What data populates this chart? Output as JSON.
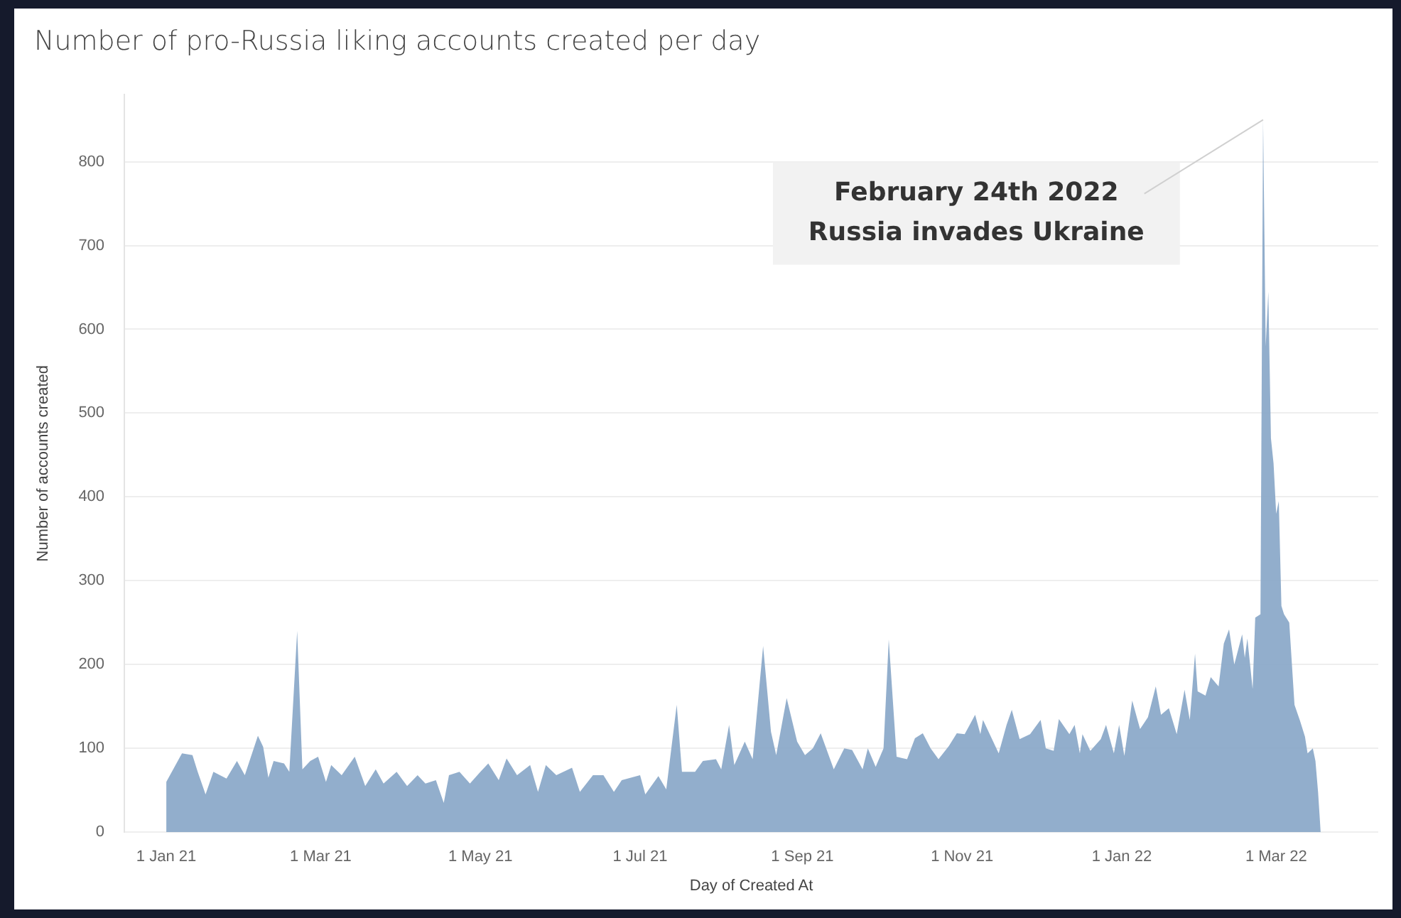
{
  "chart_data": {
    "type": "area",
    "title": "Number of pro-Russia liking accounts created per day",
    "xlabel": "Day of Created At",
    "ylabel": "Number of accounts created",
    "x": [
      "2021-01-01",
      "2021-01-07",
      "2021-01-11",
      "2021-01-13",
      "2021-01-16",
      "2021-01-19",
      "2021-01-24",
      "2021-01-28",
      "2021-01-31",
      "2021-02-05",
      "2021-02-07",
      "2021-02-09",
      "2021-02-11",
      "2021-02-15",
      "2021-02-17",
      "2021-02-20",
      "2021-02-22",
      "2021-02-25",
      "2021-02-28",
      "2021-03-03",
      "2021-03-05",
      "2021-03-09",
      "2021-03-14",
      "2021-03-18",
      "2021-03-22",
      "2021-03-25",
      "2021-03-30",
      "2021-04-03",
      "2021-04-07",
      "2021-04-10",
      "2021-04-14",
      "2021-04-17",
      "2021-04-19",
      "2021-04-23",
      "2021-04-27",
      "2021-05-01",
      "2021-05-04",
      "2021-05-08",
      "2021-05-11",
      "2021-05-15",
      "2021-05-20",
      "2021-05-23",
      "2021-05-26",
      "2021-05-30",
      "2021-06-05",
      "2021-06-08",
      "2021-06-13",
      "2021-06-17",
      "2021-06-21",
      "2021-06-24",
      "2021-07-01",
      "2021-07-03",
      "2021-07-08",
      "2021-07-11",
      "2021-07-15",
      "2021-07-17",
      "2021-07-22",
      "2021-07-25",
      "2021-07-30",
      "2021-08-01",
      "2021-08-04",
      "2021-08-06",
      "2021-08-10",
      "2021-08-13",
      "2021-08-17",
      "2021-08-20",
      "2021-08-22",
      "2021-08-26",
      "2021-08-30",
      "2021-09-02",
      "2021-09-05",
      "2021-09-08",
      "2021-09-13",
      "2021-09-17",
      "2021-09-20",
      "2021-09-24",
      "2021-09-26",
      "2021-09-29",
      "2021-10-02",
      "2021-10-04",
      "2021-10-07",
      "2021-10-11",
      "2021-10-14",
      "2021-10-17",
      "2021-10-20",
      "2021-10-23",
      "2021-10-27",
      "2021-10-30",
      "2021-11-02",
      "2021-11-06",
      "2021-11-08",
      "2021-11-09",
      "2021-11-15",
      "2021-11-18",
      "2021-11-20",
      "2021-11-23",
      "2021-11-27",
      "2021-12-01",
      "2021-12-03",
      "2021-12-06",
      "2021-12-08",
      "2021-12-12",
      "2021-12-14",
      "2021-12-16",
      "2021-12-17",
      "2021-12-20",
      "2021-12-24",
      "2021-12-26",
      "2021-12-29",
      "2021-12-31",
      "2022-01-02",
      "2022-01-05",
      "2022-01-08",
      "2022-01-11",
      "2022-01-14",
      "2022-01-16",
      "2022-01-19",
      "2022-01-22",
      "2022-01-25",
      "2022-01-27",
      "2022-01-29",
      "2022-01-30",
      "2022-02-02",
      "2022-02-04",
      "2022-02-07",
      "2022-02-09",
      "2022-02-11",
      "2022-02-13",
      "2022-02-16",
      "2022-02-17",
      "2022-02-18",
      "2022-02-20",
      "2022-02-21",
      "2022-02-23",
      "2022-02-24",
      "2022-02-25",
      "2022-02-26",
      "2022-02-27",
      "2022-02-28",
      "2022-03-01",
      "2022-03-02",
      "2022-03-03",
      "2022-03-04",
      "2022-03-06",
      "2022-03-08",
      "2022-03-10",
      "2022-03-12",
      "2022-03-13",
      "2022-03-15",
      "2022-03-16",
      "2022-03-17",
      "2022-03-18"
    ],
    "series": [
      {
        "color": "#8aa8c8",
        "values": [
          60,
          94,
          92,
          72,
          45,
          72,
          64,
          85,
          68,
          115,
          102,
          65,
          85,
          82,
          72,
          240,
          75,
          85,
          90,
          60,
          80,
          68,
          90,
          55,
          75,
          58,
          72,
          55,
          68,
          58,
          62,
          35,
          68,
          72,
          58,
          72,
          82,
          62,
          88,
          68,
          80,
          48,
          80,
          68,
          77,
          48,
          68,
          68,
          48,
          62,
          68,
          45,
          67,
          51,
          152,
          72,
          72,
          85,
          87,
          75,
          128,
          80,
          108,
          87,
          222,
          120,
          92,
          160,
          108,
          92,
          100,
          118,
          75,
          100,
          98,
          75,
          100,
          78,
          100,
          230,
          90,
          87,
          112,
          118,
          100,
          87,
          103,
          118,
          117,
          140,
          117,
          134,
          94,
          128,
          146,
          111,
          117,
          134,
          100,
          97,
          135,
          117,
          128,
          94,
          117,
          97,
          111,
          128,
          94,
          128,
          91,
          157,
          123,
          137,
          174,
          140,
          148,
          117,
          170,
          134,
          213,
          168,
          163,
          185,
          174,
          225,
          242,
          200,
          236,
          208,
          231,
          171,
          256,
          260,
          850,
          580,
          645,
          470,
          440,
          380,
          395,
          270,
          260,
          250,
          152,
          134,
          114,
          94,
          100,
          85,
          48,
          0
        ]
      }
    ],
    "xlim": [
      "2020-12-16",
      "2022-04-09"
    ],
    "xticks": [
      {
        "value": "2021-01-01",
        "label": "1 Jan 21"
      },
      {
        "value": "2021-03-01",
        "label": "1 Mar 21"
      },
      {
        "value": "2021-05-01",
        "label": "1 May 21"
      },
      {
        "value": "2021-07-01",
        "label": "1 Jul 21"
      },
      {
        "value": "2021-09-01",
        "label": "1 Sep 21"
      },
      {
        "value": "2021-11-01",
        "label": "1 Nov 21"
      },
      {
        "value": "2022-01-01",
        "label": "1 Jan 22"
      },
      {
        "value": "2022-03-01",
        "label": "1 Mar 22"
      }
    ],
    "ylim": [
      0,
      880
    ],
    "yticks": [
      0,
      100,
      200,
      300,
      400,
      500,
      600,
      700,
      800
    ],
    "grid": "y",
    "legend": false,
    "annotations": [
      {
        "text": "February 24th 2022\nRussia invades Ukraine",
        "x": "2022-02-24",
        "y": 850
      }
    ]
  }
}
